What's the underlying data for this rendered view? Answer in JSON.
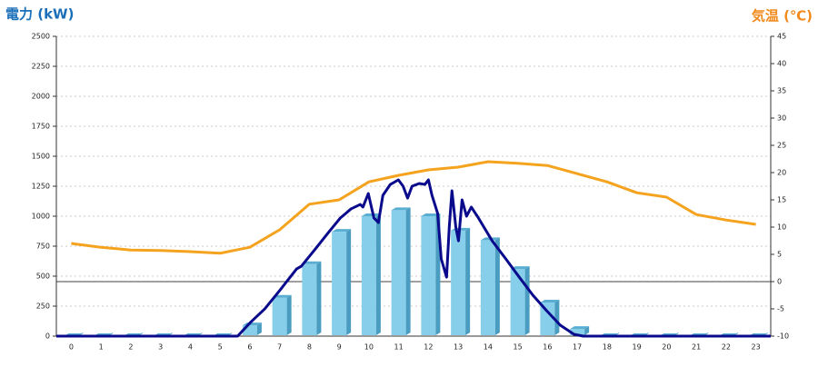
{
  "chart_data": {
    "type": "combo",
    "y_label": "電力 (kW)",
    "y2_label": "気温 (℃)",
    "categories": [
      "0",
      "1",
      "2",
      "3",
      "4",
      "5",
      "6",
      "7",
      "8",
      "9",
      "10",
      "11",
      "12",
      "13",
      "14",
      "15",
      "16",
      "17",
      "18",
      "19",
      "20",
      "21",
      "22",
      "23"
    ],
    "xlim": [
      -0.5,
      23.5
    ],
    "ylim": [
      0,
      2500
    ],
    "yticks": [
      0,
      250,
      500,
      750,
      1000,
      1250,
      1500,
      1750,
      2000,
      2250,
      2500
    ],
    "y2lim": [
      -10,
      45
    ],
    "y2ticks": [
      -10,
      -5,
      0,
      5,
      10,
      15,
      20,
      25,
      30,
      35,
      40,
      45
    ],
    "grid": true,
    "series": [
      {
        "type": "bar",
        "color": "#87ceeb",
        "axis": "y",
        "values": [
          0,
          0,
          0,
          0,
          0,
          0,
          90,
          320,
          600,
          870,
          1000,
          1050,
          1000,
          880,
          800,
          560,
          280,
          60,
          0,
          0,
          0,
          0,
          0,
          0
        ]
      },
      {
        "type": "line",
        "color": "#0a0a8c",
        "axis": "y",
        "x": [
          -0.5,
          5.59,
          6.02,
          6.5,
          7.0,
          7.57,
          7.73,
          8.18,
          8.64,
          9.04,
          9.4,
          9.71,
          9.8,
          9.98,
          10.17,
          10.32,
          10.47,
          10.72,
          10.99,
          11.15,
          11.3,
          11.45,
          11.69,
          11.88,
          12.0,
          12.12,
          12.31,
          12.43,
          12.61,
          12.7,
          12.79,
          12.92,
          13.01,
          13.13,
          13.28,
          13.44,
          13.68,
          14.14,
          14.6,
          15.05,
          15.51,
          15.97,
          16.43,
          16.89,
          17.2,
          23.5
        ],
        "values": [
          0,
          0,
          114,
          227,
          379,
          560,
          583,
          720,
          864,
          985,
          1061,
          1098,
          1076,
          1189,
          985,
          947,
          1174,
          1265,
          1303,
          1250,
          1151,
          1250,
          1273,
          1265,
          1303,
          1174,
          1023,
          644,
          492,
          909,
          1212,
          909,
          795,
          1136,
          1000,
          1076,
          985,
          795,
          644,
          492,
          341,
          212,
          91,
          15,
          0,
          0
        ]
      },
      {
        "type": "line",
        "color": "#f5a31e",
        "axis": "y2",
        "values": [
          7,
          6.3,
          5.8,
          5.7,
          5.5,
          5.2,
          6.3,
          9.5,
          14.2,
          15,
          18.3,
          19.5,
          20.5,
          21,
          22,
          21.7,
          21.3,
          19.8,
          18.3,
          16.3,
          15.5,
          12.3,
          11.3,
          10.5
        ]
      }
    ]
  }
}
